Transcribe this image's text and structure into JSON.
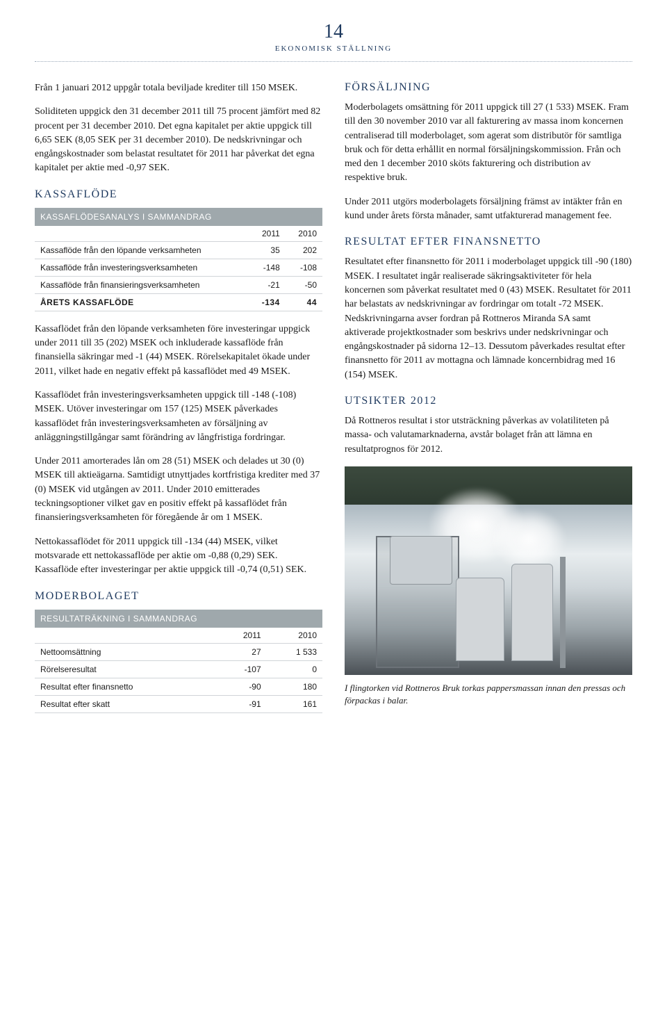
{
  "header": {
    "page_number": "14",
    "section_label": "EKONOMISK STÄLLNING"
  },
  "left": {
    "p1": "Från 1 januari 2012 uppgår totala beviljade krediter till 150 MSEK.",
    "p2": "Soliditeten uppgick den 31 december 2011 till 75 procent jämfört med 82 procent per 31 december 2010. Det egna kapitalet per aktie uppgick till 6,65 SEK (8,05 SEK per 31 december 2010). De nedskrivningar och engångskostnader som belastat resultatet för 2011 har påverkat det egna kapitalet per aktie med -0,97 SEK.",
    "kassaflode_head": "KASSAFLÖDE",
    "cashflow_table": {
      "title": "KASSAFLÖDESANALYS I SAMMANDRAG",
      "col1": "2011",
      "col2": "2010",
      "rows": [
        {
          "label": "Kassaflöde från den löpande verksamheten",
          "v1": "35",
          "v2": "202"
        },
        {
          "label": "Kassaflöde från investeringsverksamheten",
          "v1": "-148",
          "v2": "-108"
        },
        {
          "label": "Kassaflöde från finansieringsverksamheten",
          "v1": "-21",
          "v2": "-50"
        }
      ],
      "total": {
        "label": "ÅRETS KASSAFLÖDE",
        "v1": "-134",
        "v2": "44"
      }
    },
    "p3": "Kassaflödet från den löpande verksamheten före investeringar uppgick under 2011 till 35 (202) MSEK och inkluderade kassaflöde från finansiella säkringar med -1 (44) MSEK. Rörelsekapitalet ökade under 2011, vilket hade en negativ effekt på kassaflödet med 49 MSEK.",
    "p4": "Kassaflödet från investeringsverksamheten uppgick till -148 (-108) MSEK. Utöver investeringar om 157 (125) MSEK påverkades kassaflödet från investeringsverksamheten av försäljning av anläggningstillgångar samt förändring av långfristiga fordringar.",
    "p5": "Under 2011 amorterades lån om 28 (51) MSEK och delades ut 30 (0) MSEK till aktieägarna. Samtidigt utnyttjades kortfristiga krediter med 37 (0) MSEK vid utgången av 2011. Under 2010 emitterades teckningsoptioner vilket gav en positiv effekt på kassaflödet från finansieringsverksamheten för föregående år om 1 MSEK.",
    "p6": "Nettokassaflödet för 2011 uppgick till -134 (44) MSEK, vilket motsvarade ett nettokassaflöde per aktie om -0,88 (0,29) SEK. Kassaflöde efter investeringar per aktie uppgick till -0,74 (0,51) SEK.",
    "moderbolaget_head": "MODERBOLAGET",
    "income_table": {
      "title": "RESULTATRÄKNING I SAMMANDRAG",
      "col1": "2011",
      "col2": "2010",
      "rows": [
        {
          "label": "Nettoomsättning",
          "v1": "27",
          "v2": "1 533"
        },
        {
          "label": "Rörelseresultat",
          "v1": "-107",
          "v2": "0"
        },
        {
          "label": "Resultat efter finansnetto",
          "v1": "-90",
          "v2": "180"
        },
        {
          "label": "Resultat efter skatt",
          "v1": "-91",
          "v2": "161"
        }
      ]
    }
  },
  "right": {
    "forsaljning_head": "FÖRSÄLJNING",
    "p1": "Moderbolagets omsättning för 2011 uppgick till 27 (1 533) MSEK. Fram till den 30 november 2010 var all fakturering av massa inom koncernen centraliserad till moderbolaget, som agerat som distributör för samtliga bruk och för detta erhållit en normal försäljningskommission. Från och med den 1 december 2010 sköts fakturering och distribution av respektive bruk.",
    "p2": "Under 2011 utgörs moderbolagets försäljning främst av intäkter från en kund under årets första månader, samt utfakturerad management fee.",
    "resultat_head": "RESULTAT EFTER FINANSNETTO",
    "p3": "Resultatet efter finansnetto för 2011 i moderbolaget uppgick till -90 (180) MSEK. I resultatet ingår realiserade säkringsaktiviteter för hela koncernen som påverkat resultatet med 0 (43) MSEK. Resultatet för 2011 har belastats av nedskrivningar av fordringar om totalt -72 MSEK. Nedskrivningarna avser fordran på Rottneros Miranda SA samt aktiverade projektkostnader som beskrivs under nedskrivningar och engångskostnader på sidorna 12–13. Dessutom påverkades resultat efter finansnetto för 2011 av mottagna och lämnade koncernbidrag med 16 (154) MSEK.",
    "utsikter_head": "UTSIKTER 2012",
    "p4": "Då Rottneros resultat i stor utsträckning påverkas av volatiliteten på massa- och valutamarknaderna, avstår bolaget från att lämna en resultatprognos för 2012.",
    "caption": "I flingtorken vid Rottneros Bruk torkas pappersmassan innan den pressas och förpackas i balar."
  },
  "colors": {
    "heading": "#1f3a5f",
    "table_header_bg": "#9fa8ac",
    "table_header_fg": "#ffffff",
    "rule": "#d0d4d8",
    "text": "#1a1a1a"
  }
}
